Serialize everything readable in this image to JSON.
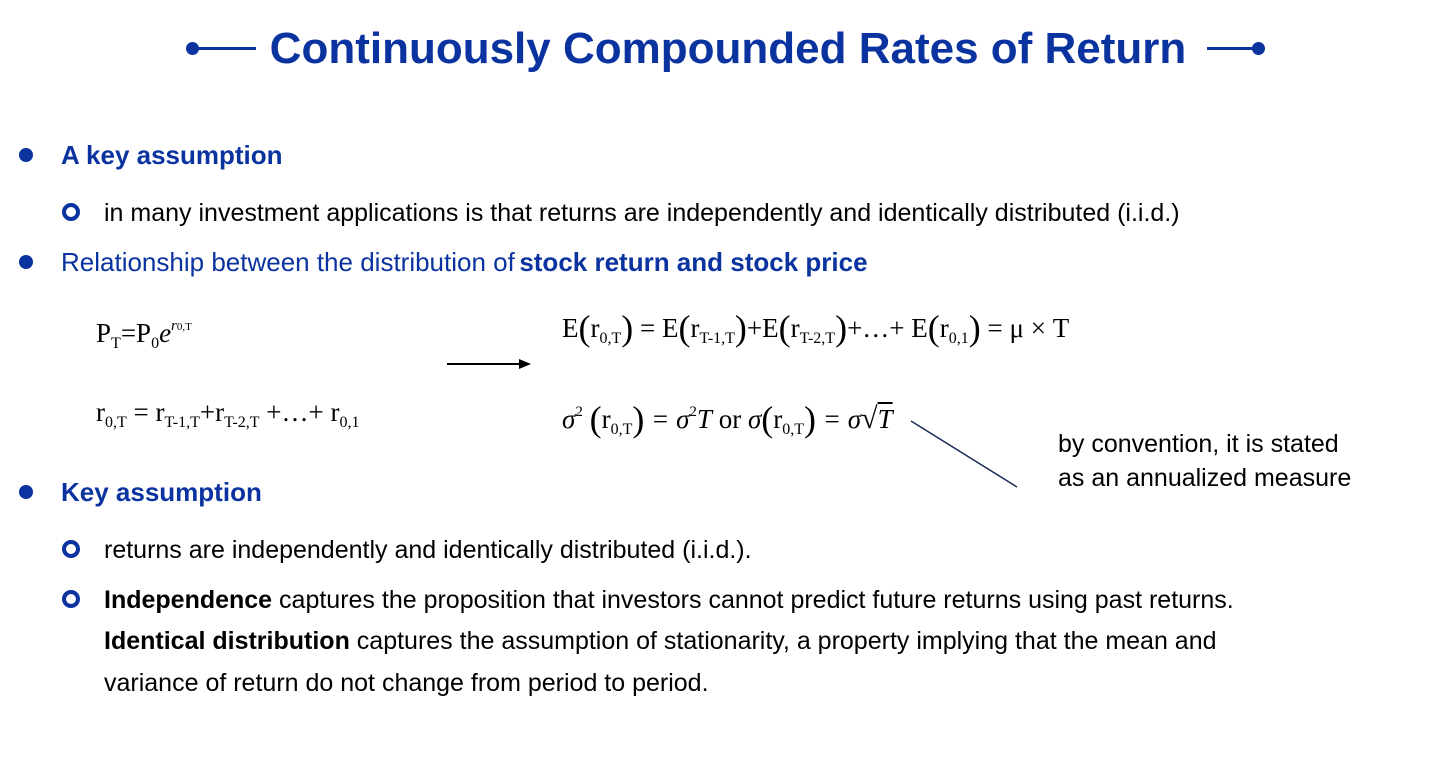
{
  "title": "Continuously Compounded Rates of Return",
  "section1": {
    "heading": "A key assumption",
    "item": "in many investment applications is that returns are independently and identically distributed (i.i.d.)"
  },
  "section2": {
    "heading_plain": "Relationship between the distribution of",
    "heading_bold": "stock return and stock price"
  },
  "formulas": {
    "price": {
      "P": "P",
      "T": "T",
      "eq": "=P",
      "zero": "0",
      "e": "e",
      "exp": "r",
      "expsub": "0,T"
    },
    "sum": {
      "r": "r",
      "s0T": "0,T",
      "eq": " = r",
      "s1": "T-1,T",
      "plus1": "+r",
      "s2": "T-2,T",
      "dots": " +…+ r",
      "s3": "0,1"
    },
    "expect": {
      "p1": "E",
      "s1": "0,T",
      "p2": "= E",
      "s2": "T-1,T",
      "p3": "+E",
      "s3": "T-2,T",
      "p4": "+…+ E",
      "s4": "0,1",
      "p5": "= μ × T"
    },
    "variance": {
      "sigma": "σ",
      "sq": "2",
      "s1": "0,T",
      "eq": "= σ",
      "sq2": "2",
      "T": "T",
      "or": " or ",
      "sigma2": "σ",
      "s2": "0,T",
      "eq2": "= σ",
      "sqrtT": "T"
    }
  },
  "annotation": {
    "line1": "by convention, it is stated",
    "line2": "as an annualized measure"
  },
  "section3": {
    "heading": "Key assumption",
    "item1": "returns are independently and identically distributed (i.i.d.).",
    "item2_bold1": "Independence",
    "item2_rest1": " captures the proposition that investors cannot predict future returns using past returns.",
    "item2_bold2": "Identical distribution",
    "item2_rest2": " captures the assumption of stationarity, a property implying that the mean and",
    "item2_line3": "variance of return do not change from period to period."
  },
  "colors": {
    "accent": "#0A33A0",
    "text": "#000000",
    "background": "#ffffff"
  }
}
